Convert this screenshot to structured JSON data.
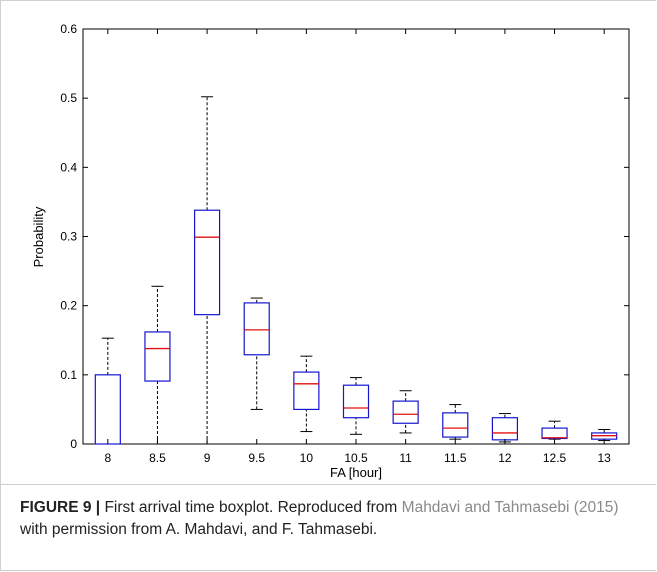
{
  "chart_data": {
    "type": "boxplot",
    "categories": [
      "8",
      "8.5",
      "9",
      "9.5",
      "10",
      "10.5",
      "11",
      "11.5",
      "12",
      "12.5",
      "13"
    ],
    "boxes": [
      {
        "whisker_low": 0.0,
        "q1": 0.0,
        "median": 0.0,
        "q3": 0.1,
        "whisker_high": 0.153
      },
      {
        "whisker_low": 0.0,
        "q1": 0.091,
        "median": 0.138,
        "q3": 0.162,
        "whisker_high": 0.228
      },
      {
        "whisker_low": 0.0,
        "q1": 0.187,
        "median": 0.299,
        "q3": 0.338,
        "whisker_high": 0.502
      },
      {
        "whisker_low": 0.05,
        "q1": 0.129,
        "median": 0.165,
        "q3": 0.204,
        "whisker_high": 0.211
      },
      {
        "whisker_low": 0.018,
        "q1": 0.05,
        "median": 0.087,
        "q3": 0.104,
        "whisker_high": 0.127
      },
      {
        "whisker_low": 0.014,
        "q1": 0.038,
        "median": 0.052,
        "q3": 0.085,
        "whisker_high": 0.096
      },
      {
        "whisker_low": 0.016,
        "q1": 0.03,
        "median": 0.043,
        "q3": 0.062,
        "whisker_high": 0.077
      },
      {
        "whisker_low": 0.007,
        "q1": 0.01,
        "median": 0.023,
        "q3": 0.045,
        "whisker_high": 0.057
      },
      {
        "whisker_low": 0.003,
        "q1": 0.006,
        "median": 0.016,
        "q3": 0.038,
        "whisker_high": 0.044
      },
      {
        "whisker_low": 0.007,
        "q1": 0.008,
        "median": 0.009,
        "q3": 0.023,
        "whisker_high": 0.033
      },
      {
        "whisker_low": 0.005,
        "q1": 0.007,
        "median": 0.012,
        "q3": 0.016,
        "whisker_high": 0.021
      }
    ],
    "xlabel": "FA [hour]",
    "ylabel": "Probability",
    "ylim": [
      0,
      0.6
    ],
    "yticks": [
      "0",
      "0.1",
      "0.2",
      "0.3",
      "0.4",
      "0.5",
      "0.6"
    ],
    "colors": {
      "box": "#1515d0",
      "median": "#e01010",
      "whisker": "#000000"
    }
  },
  "caption": {
    "label": "FIGURE 9 |",
    "text": "First arrival time boxplot. Reproduced from",
    "link": "Mahdavi and Tahmasebi (2015)",
    "rest": "with permission from A. Mahdavi, and F. Tahmasebi."
  }
}
